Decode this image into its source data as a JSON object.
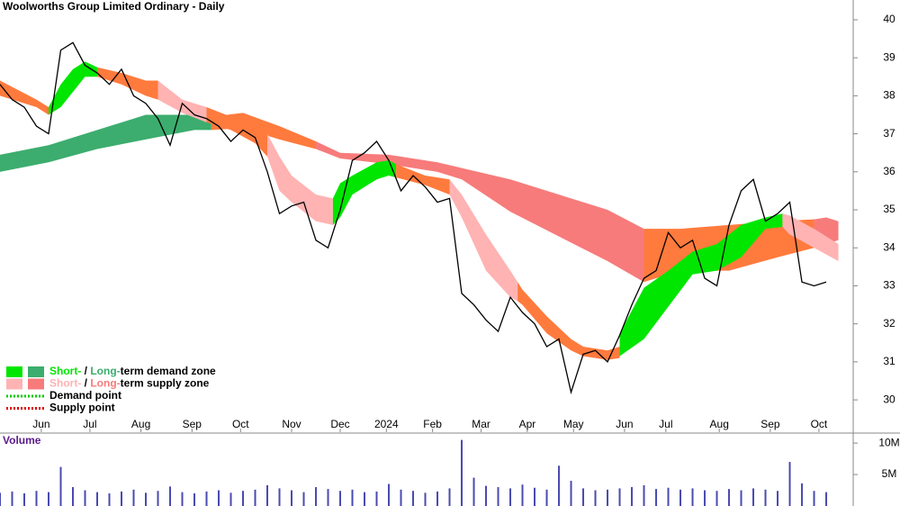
{
  "chart_data": [
    {
      "type": "line",
      "title": "Woolworths Group Limited Ordinary - Daily",
      "xlim": [
        0,
        351.1
      ],
      "ylim": [
        29.15,
        40.52
      ],
      "yticks": [
        30,
        31,
        32,
        33,
        34,
        35,
        36,
        37,
        38,
        39,
        40
      ],
      "xticks": [
        {
          "value": 17,
          "label": "Jun"
        },
        {
          "value": 37,
          "label": "Jul"
        },
        {
          "value": 58,
          "label": "Aug"
        },
        {
          "value": 79,
          "label": "Sep"
        },
        {
          "value": 99,
          "label": "Oct"
        },
        {
          "value": 120,
          "label": "Nov"
        },
        {
          "value": 140,
          "label": "Dec"
        },
        {
          "value": 159,
          "label": "2024"
        },
        {
          "value": 178,
          "label": "Feb"
        },
        {
          "value": 198,
          "label": "Mar"
        },
        {
          "value": 217,
          "label": "Apr"
        },
        {
          "value": 236,
          "label": "May"
        },
        {
          "value": 257,
          "label": "Jun"
        },
        {
          "value": 274,
          "label": "Jul"
        },
        {
          "value": 296,
          "label": "Aug"
        },
        {
          "value": 317,
          "label": "Sep"
        },
        {
          "value": 337,
          "label": "Oct"
        }
      ],
      "x": [
        0,
        5,
        10,
        15,
        20,
        25,
        30,
        35,
        40,
        45,
        50,
        55,
        60,
        65,
        70,
        75,
        80,
        85,
        90,
        95,
        100,
        105,
        110,
        115,
        120,
        125,
        130,
        135,
        140,
        145,
        150,
        155,
        160,
        165,
        170,
        175,
        180,
        185,
        190,
        195,
        200,
        205,
        210,
        215,
        220,
        225,
        230,
        235,
        240,
        245,
        250,
        255,
        260,
        265,
        270,
        275,
        280,
        285,
        290,
        295,
        300,
        305,
        310,
        315,
        320,
        325,
        330,
        335,
        340
      ],
      "series": [
        {
          "color": "#000000",
          "values": [
            38.3,
            37.9,
            37.7,
            37.2,
            37.0,
            39.2,
            39.4,
            38.8,
            38.6,
            38.3,
            38.7,
            38.0,
            37.8,
            37.4,
            36.7,
            37.8,
            37.5,
            37.4,
            37.2,
            36.8,
            37.1,
            36.9,
            36.0,
            34.9,
            35.1,
            35.2,
            34.2,
            34.0,
            35.0,
            36.3,
            36.5,
            36.8,
            36.3,
            35.5,
            35.9,
            35.6,
            35.2,
            35.3,
            32.8,
            32.5,
            32.1,
            31.8,
            32.7,
            32.3,
            32.0,
            31.4,
            31.6,
            30.2,
            31.2,
            31.3,
            31.0,
            31.7,
            32.5,
            33.2,
            33.4,
            34.4,
            34.0,
            34.2,
            33.2,
            33.0,
            34.6,
            35.5,
            35.8,
            34.7,
            34.9,
            35.2,
            33.1,
            33.0,
            33.1
          ]
        }
      ],
      "zones": [
        {
          "color": "#3cad6e",
          "x": [
            0,
            20,
            40,
            60,
            80,
            87
          ],
          "upper": [
            36.45,
            36.7,
            37.1,
            37.5,
            37.5,
            37.45
          ],
          "lower": [
            36.0,
            36.25,
            36.6,
            36.85,
            37.1,
            37.1
          ]
        },
        {
          "color": "#ff7a3d",
          "x": [
            87,
            100,
            115,
            130
          ],
          "upper": [
            37.45,
            37.55,
            37.2,
            36.8
          ],
          "lower": [
            37.1,
            37.15,
            36.85,
            36.6
          ]
        },
        {
          "color": "#f77b7b",
          "x": [
            130,
            140,
            160,
            180,
            190,
            210,
            230,
            250,
            265
          ],
          "upper": [
            36.8,
            36.5,
            36.45,
            36.25,
            36.1,
            35.8,
            35.4,
            35.0,
            34.5
          ],
          "lower": [
            36.6,
            36.35,
            36.2,
            36.0,
            35.8,
            34.95,
            34.3,
            33.65,
            33.1
          ]
        },
        {
          "color": "#ff7a3d",
          "x": [
            265,
            280,
            300,
            320,
            335
          ],
          "upper": [
            34.5,
            34.5,
            34.6,
            34.7,
            34.75
          ],
          "lower": [
            33.1,
            33.4,
            33.4,
            33.75,
            34.0
          ]
        },
        {
          "color": "#f77b7b",
          "x": [
            335,
            340,
            345
          ],
          "upper": [
            34.75,
            34.8,
            34.7
          ],
          "lower": [
            34.0,
            34.1,
            34.2
          ]
        },
        {
          "color": "#ff7a3d",
          "x": [
            0,
            15,
            20
          ],
          "upper": [
            38.4,
            37.9,
            37.7
          ],
          "lower": [
            38.0,
            37.7,
            37.5
          ]
        },
        {
          "color": "#00e600",
          "x": [
            20,
            25,
            30,
            35,
            40
          ],
          "upper": [
            37.7,
            38.3,
            38.7,
            38.9,
            38.75
          ],
          "lower": [
            37.5,
            37.7,
            38.1,
            38.5,
            38.5
          ]
        },
        {
          "color": "#ff7a3d",
          "x": [
            40,
            50,
            60,
            65
          ],
          "upper": [
            38.75,
            38.6,
            38.4,
            38.4
          ],
          "lower": [
            38.5,
            38.3,
            38.0,
            37.9
          ]
        },
        {
          "color": "#ffb3b3",
          "x": [
            65,
            75,
            85
          ],
          "upper": [
            38.4,
            37.9,
            37.7
          ],
          "lower": [
            37.9,
            37.55,
            37.3
          ]
        },
        {
          "color": "#ff7a3d",
          "x": [
            85,
            95,
            105,
            110
          ],
          "upper": [
            37.7,
            37.45,
            37.2,
            37.0
          ],
          "lower": [
            37.3,
            37.1,
            36.75,
            36.4
          ]
        },
        {
          "color": "#ffb3b3",
          "x": [
            110,
            115,
            120,
            130,
            137
          ],
          "upper": [
            37.0,
            36.4,
            35.9,
            35.4,
            35.3
          ],
          "lower": [
            36.4,
            35.5,
            35.2,
            34.7,
            34.6
          ]
        },
        {
          "color": "#00e600",
          "x": [
            137,
            140,
            145,
            155,
            160,
            163
          ],
          "upper": [
            35.3,
            35.7,
            35.9,
            36.25,
            36.3,
            36.2
          ],
          "lower": [
            34.6,
            34.8,
            35.4,
            35.8,
            35.9,
            35.85
          ]
        },
        {
          "color": "#ff7a3d",
          "x": [
            163,
            175,
            185
          ],
          "upper": [
            36.2,
            35.9,
            35.8
          ],
          "lower": [
            35.85,
            35.65,
            35.4
          ]
        },
        {
          "color": "#ffb3b3",
          "x": [
            185,
            190,
            200,
            210,
            213
          ],
          "upper": [
            35.8,
            35.4,
            34.35,
            33.4,
            33.1
          ],
          "lower": [
            35.4,
            34.8,
            33.4,
            32.7,
            32.6
          ]
        },
        {
          "color": "#ff7a3d",
          "x": [
            213,
            215,
            225,
            235,
            240,
            250,
            255
          ],
          "upper": [
            33.1,
            32.9,
            32.2,
            31.6,
            31.4,
            31.3,
            31.4
          ],
          "lower": [
            32.6,
            32.5,
            31.75,
            31.3,
            31.15,
            31.05,
            31.1
          ]
        },
        {
          "color": "#00e600",
          "x": [
            255,
            265,
            275,
            285,
            295,
            305,
            315,
            322
          ],
          "upper": [
            31.75,
            32.95,
            33.4,
            33.9,
            34.1,
            34.6,
            34.8,
            34.9
          ],
          "lower": [
            31.15,
            31.6,
            32.45,
            33.3,
            33.4,
            33.75,
            34.5,
            34.55
          ]
        },
        {
          "color": "#ffb3b3",
          "x": [
            322,
            325,
            335,
            345
          ],
          "upper": [
            34.9,
            34.85,
            34.5,
            34.1
          ],
          "lower": [
            34.55,
            34.35,
            34.0,
            33.65
          ]
        }
      ],
      "legend": [
        {
          "swatches": [
            "#00e600",
            "#3cad6e"
          ],
          "parts": [
            {
              "text": "Short-",
              "color": "#00e600"
            },
            {
              "text": " / ",
              "color": "#000000"
            },
            {
              "text": "Long-",
              "color": "#3cad6e"
            },
            {
              "text": "term demand zone",
              "color": "#000000"
            }
          ]
        },
        {
          "swatches": [
            "#ffb3b3",
            "#f77b7b"
          ],
          "parts": [
            {
              "text": "Short-",
              "color": "#ffb3b3"
            },
            {
              "text": " / ",
              "color": "#000000"
            },
            {
              "text": "Long-",
              "color": "#f77b7b"
            },
            {
              "text": "term supply zone",
              "color": "#000000"
            }
          ]
        },
        {
          "dotted": "#00cc00",
          "parts": [
            {
              "text": "Demand point",
              "color": "#000000"
            }
          ]
        },
        {
          "dotted": "#dd0000",
          "parts": [
            {
              "text": "Supply point",
              "color": "#000000"
            }
          ]
        }
      ]
    },
    {
      "type": "bar",
      "title": "Volume",
      "title_color": "#5a1a8a",
      "color": "#4a4ab0",
      "xlim": [
        0,
        351.1
      ],
      "ylim": [
        0,
        11.3
      ],
      "yticks": [
        {
          "value": 10,
          "label": "10M"
        },
        {
          "value": 5,
          "label": "5M"
        }
      ],
      "x": [
        0,
        5,
        10,
        15,
        20,
        25,
        30,
        35,
        40,
        45,
        50,
        55,
        60,
        65,
        70,
        75,
        80,
        85,
        90,
        95,
        100,
        105,
        110,
        115,
        120,
        125,
        130,
        135,
        140,
        145,
        150,
        155,
        160,
        165,
        170,
        175,
        180,
        185,
        190,
        195,
        200,
        205,
        210,
        215,
        220,
        225,
        230,
        235,
        240,
        245,
        250,
        255,
        260,
        265,
        270,
        275,
        280,
        285,
        290,
        295,
        300,
        305,
        310,
        315,
        320,
        325,
        330,
        335,
        340
      ],
      "values": [
        2.1,
        2.3,
        2.0,
        2.4,
        2.2,
        6.2,
        3.0,
        2.5,
        2.2,
        2.0,
        2.3,
        2.6,
        2.1,
        2.4,
        3.1,
        2.2,
        2.0,
        2.3,
        2.5,
        2.1,
        2.4,
        2.6,
        3.3,
        2.8,
        2.5,
        2.2,
        3.0,
        2.7,
        2.4,
        2.6,
        2.2,
        2.3,
        3.5,
        2.6,
        2.4,
        2.1,
        2.3,
        2.8,
        10.5,
        4.5,
        3.2,
        3.0,
        2.8,
        3.4,
        2.9,
        2.6,
        6.4,
        4.0,
        2.8,
        2.5,
        2.6,
        2.8,
        3.0,
        3.3,
        2.7,
        2.9,
        2.6,
        2.8,
        2.5,
        2.4,
        2.7,
        2.5,
        2.8,
        2.6,
        2.4,
        7.0,
        3.6,
        2.4,
        2.2
      ]
    }
  ]
}
